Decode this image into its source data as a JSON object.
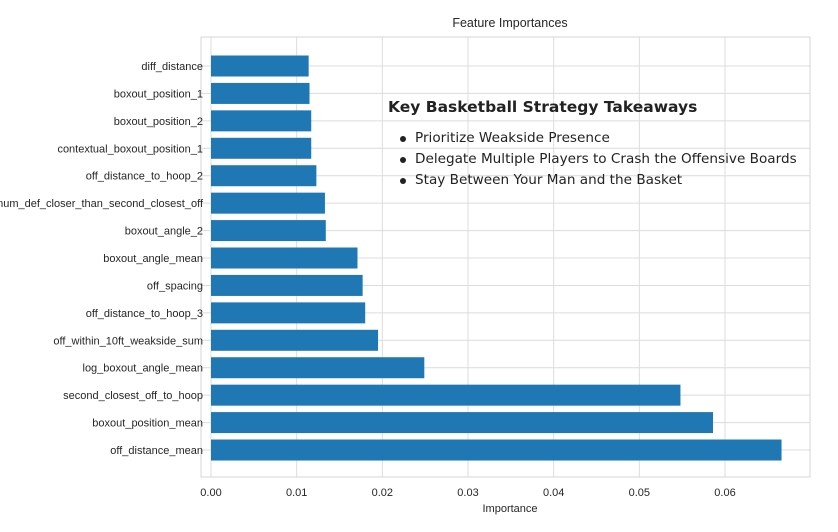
{
  "chart_data": {
    "type": "bar",
    "orientation": "horizontal",
    "title": "Feature Importances",
    "xlabel": "Importance",
    "ylabel": "",
    "xlim": [
      0.0,
      0.07
    ],
    "x_ticks": [
      "0.00",
      "0.01",
      "0.02",
      "0.03",
      "0.04",
      "0.05",
      "0.06"
    ],
    "grid": true,
    "bar_color": "#1f77b4",
    "categories": [
      "diff_distance",
      "boxout_position_1",
      "boxout_position_2",
      "contextual_boxout_position_1",
      "off_distance_to_hoop_2",
      "num_def_closer_than_second_closest_off",
      "boxout_angle_2",
      "boxout_angle_mean",
      "off_spacing",
      "off_distance_to_hoop_3",
      "off_within_10ft_weakside_sum",
      "log_boxout_angle_mean",
      "second_closest_off_to_hoop",
      "boxout_position_mean",
      "off_distance_mean"
    ],
    "values": [
      0.0114,
      0.0115,
      0.0117,
      0.0117,
      0.0123,
      0.0133,
      0.0134,
      0.0171,
      0.0177,
      0.018,
      0.0195,
      0.0249,
      0.0548,
      0.0586,
      0.0666
    ]
  },
  "annotation": {
    "title": "Key Basketball Strategy Takeaways",
    "items": [
      "Prioritize Weakside Presence",
      "Delegate Multiple Players to Crash the Offensive Boards",
      "Stay Between Your Man and the Basket"
    ]
  }
}
